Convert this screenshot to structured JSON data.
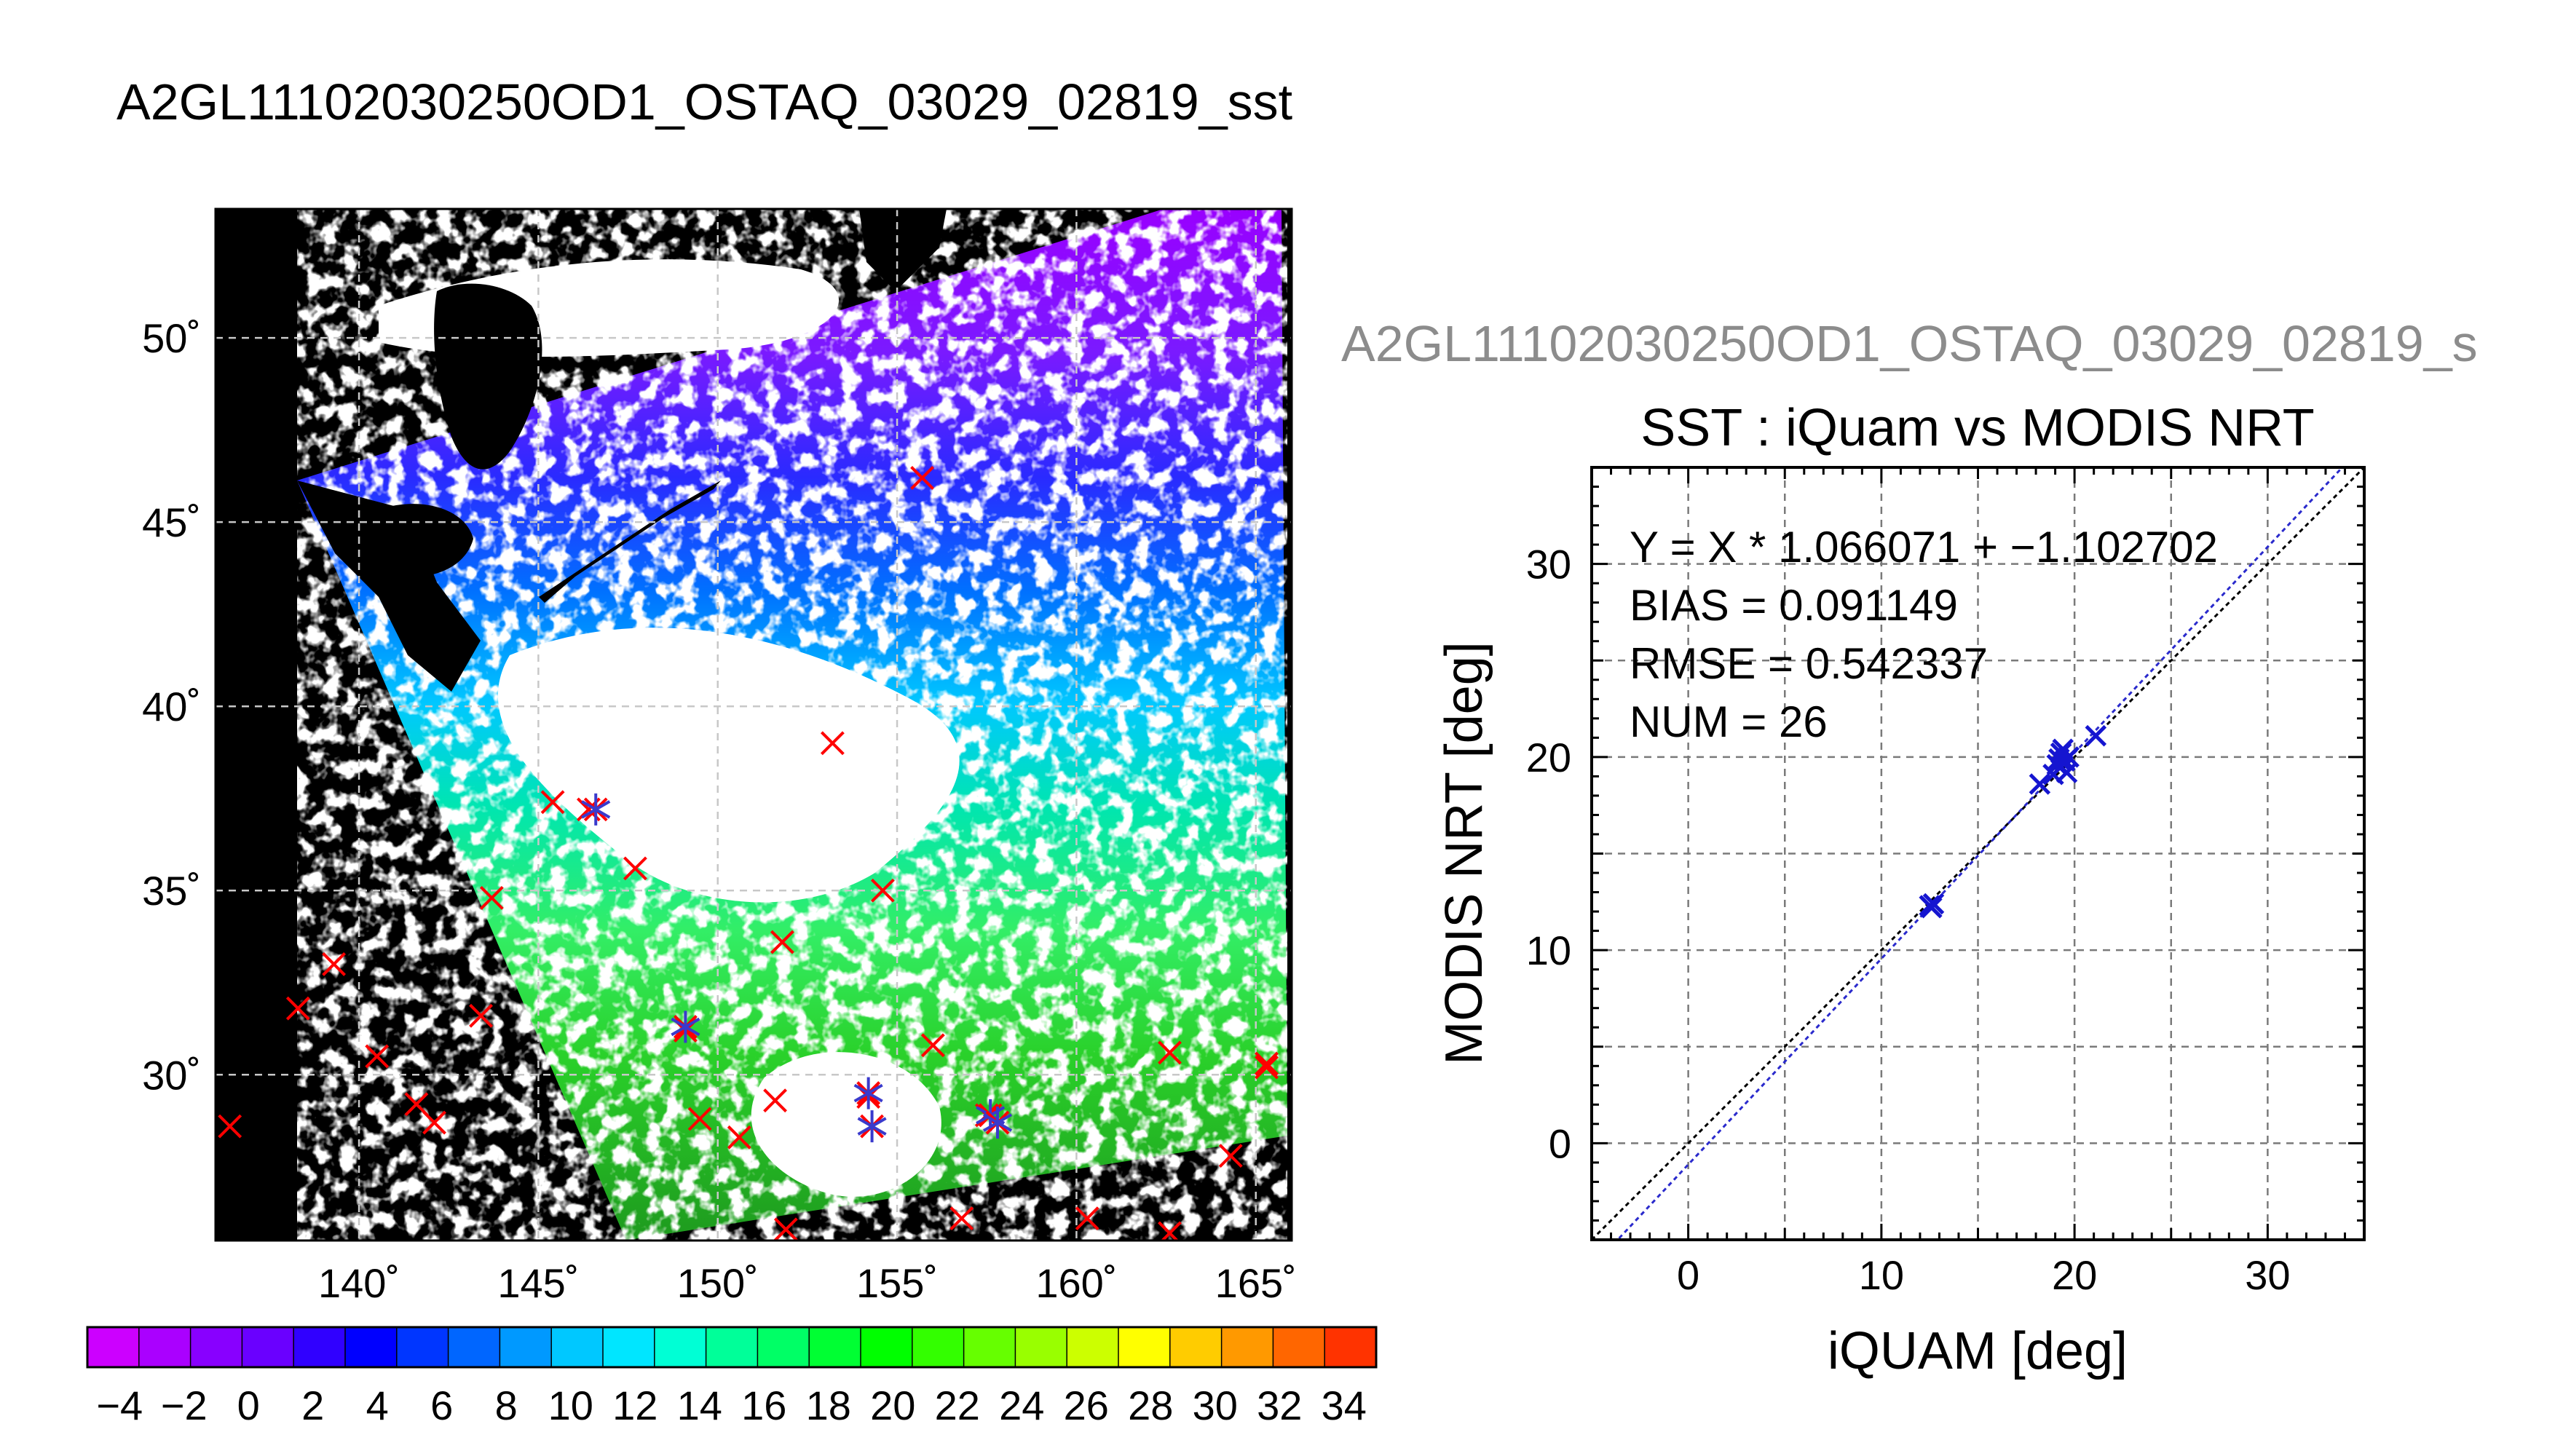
{
  "main_title": "A2GL11102030250OD1_OSTAQ_03029_02819_sst",
  "sub_title": "A2GL11102030250OD1_OSTAQ_03029_02819_s",
  "chart_data": [
    {
      "type": "heatmap",
      "name": "SST map",
      "xlim": [
        136,
        166
      ],
      "ylim": [
        25.5,
        53.5
      ],
      "lon_ticks": [
        140,
        145,
        150,
        155,
        160,
        165
      ],
      "lon_labels": [
        "140˚",
        "145˚",
        "150˚",
        "155˚",
        "160˚",
        "165˚"
      ],
      "lat_ticks": [
        30,
        35,
        40,
        45,
        50
      ],
      "lat_labels": [
        "30˚",
        "35˚",
        "40˚",
        "45˚",
        "50˚"
      ],
      "grid": true,
      "colorbar": {
        "min": -5,
        "max": 35,
        "step": 2,
        "tick_labels": [
          "−4",
          "−2",
          "0",
          "2",
          "4",
          "6",
          "8",
          "10",
          "12",
          "14",
          "16",
          "18",
          "20",
          "22",
          "24",
          "26",
          "28",
          "30",
          "32",
          "34"
        ],
        "colors": [
          "#cc00ff",
          "#aa00ff",
          "#8800ff",
          "#6a00ff",
          "#3000ff",
          "#0000ff",
          "#0036ff",
          "#0066ff",
          "#0099ff",
          "#00c8ff",
          "#00e6ff",
          "#00ffd5",
          "#00ff99",
          "#00ff66",
          "#00ff33",
          "#00ff00",
          "#33ff00",
          "#66ff00",
          "#99ff00",
          "#ccff00",
          "#ffff00",
          "#ffcc00",
          "#ff9900",
          "#ff6600",
          "#ff3300"
        ]
      },
      "matched_points": [
        {
          "lon": 146.6,
          "lat": 37.2
        },
        {
          "lon": 149.1,
          "lat": 31.3
        },
        {
          "lon": 154.2,
          "lat": 29.5
        },
        {
          "lon": 154.3,
          "lat": 28.6
        },
        {
          "lon": 157.6,
          "lat": 28.9
        },
        {
          "lon": 157.8,
          "lat": 28.7
        }
      ],
      "unmatched_points": [
        {
          "lon": 136.4,
          "lat": 28.6
        },
        {
          "lon": 138.3,
          "lat": 31.8
        },
        {
          "lon": 139.3,
          "lat": 33.0
        },
        {
          "lon": 140.5,
          "lat": 30.5
        },
        {
          "lon": 141.6,
          "lat": 29.2
        },
        {
          "lon": 142.1,
          "lat": 28.7
        },
        {
          "lon": 143.4,
          "lat": 31.6
        },
        {
          "lon": 143.7,
          "lat": 34.8
        },
        {
          "lon": 145.4,
          "lat": 37.4
        },
        {
          "lon": 146.4,
          "lat": 37.2
        },
        {
          "lon": 147.7,
          "lat": 35.6
        },
        {
          "lon": 149.1,
          "lat": 31.2
        },
        {
          "lon": 149.5,
          "lat": 28.8
        },
        {
          "lon": 150.6,
          "lat": 28.3
        },
        {
          "lon": 151.6,
          "lat": 29.3
        },
        {
          "lon": 151.8,
          "lat": 33.6
        },
        {
          "lon": 151.9,
          "lat": 25.8
        },
        {
          "lon": 153.2,
          "lat": 39.0
        },
        {
          "lon": 154.2,
          "lat": 29.4
        },
        {
          "lon": 154.6,
          "lat": 35.0
        },
        {
          "lon": 155.7,
          "lat": 46.2
        },
        {
          "lon": 156.0,
          "lat": 30.8
        },
        {
          "lon": 156.8,
          "lat": 26.1
        },
        {
          "lon": 157.5,
          "lat": 28.9
        },
        {
          "lon": 160.3,
          "lat": 26.1
        },
        {
          "lon": 162.6,
          "lat": 30.6
        },
        {
          "lon": 162.6,
          "lat": 25.7
        },
        {
          "lon": 164.3,
          "lat": 27.8
        },
        {
          "lon": 165.3,
          "lat": 30.3
        },
        {
          "lon": 165.3,
          "lat": 30.2
        }
      ]
    },
    {
      "type": "scatter",
      "title": "SST : iQuam vs MODIS NRT",
      "xlabel": "iQUAM [deg]",
      "ylabel": "MODIS NRT [deg]",
      "xlim": [
        -5,
        35
      ],
      "ylim": [
        -5,
        35
      ],
      "ticks": [
        0,
        10,
        20,
        30
      ],
      "grid": true,
      "fit": {
        "slope": 1.066071,
        "intercept": -1.102702
      },
      "annotations": [
        "Y = X * 1.066071 + −1.102702",
        "BIAS = 0.091149",
        "RMSE = 0.542337",
        "NUM = 26"
      ],
      "points": [
        {
          "x": 12.5,
          "y": 12.3
        },
        {
          "x": 12.6,
          "y": 12.2
        },
        {
          "x": 12.7,
          "y": 12.4
        },
        {
          "x": 18.2,
          "y": 18.6
        },
        {
          "x": 18.9,
          "y": 19.1
        },
        {
          "x": 19.1,
          "y": 19.6
        },
        {
          "x": 19.2,
          "y": 19.9
        },
        {
          "x": 19.3,
          "y": 20.2
        },
        {
          "x": 19.4,
          "y": 20.4
        },
        {
          "x": 19.5,
          "y": 19.8
        },
        {
          "x": 19.6,
          "y": 19.2
        },
        {
          "x": 19.7,
          "y": 20.0
        },
        {
          "x": 21.1,
          "y": 21.1
        }
      ]
    }
  ]
}
